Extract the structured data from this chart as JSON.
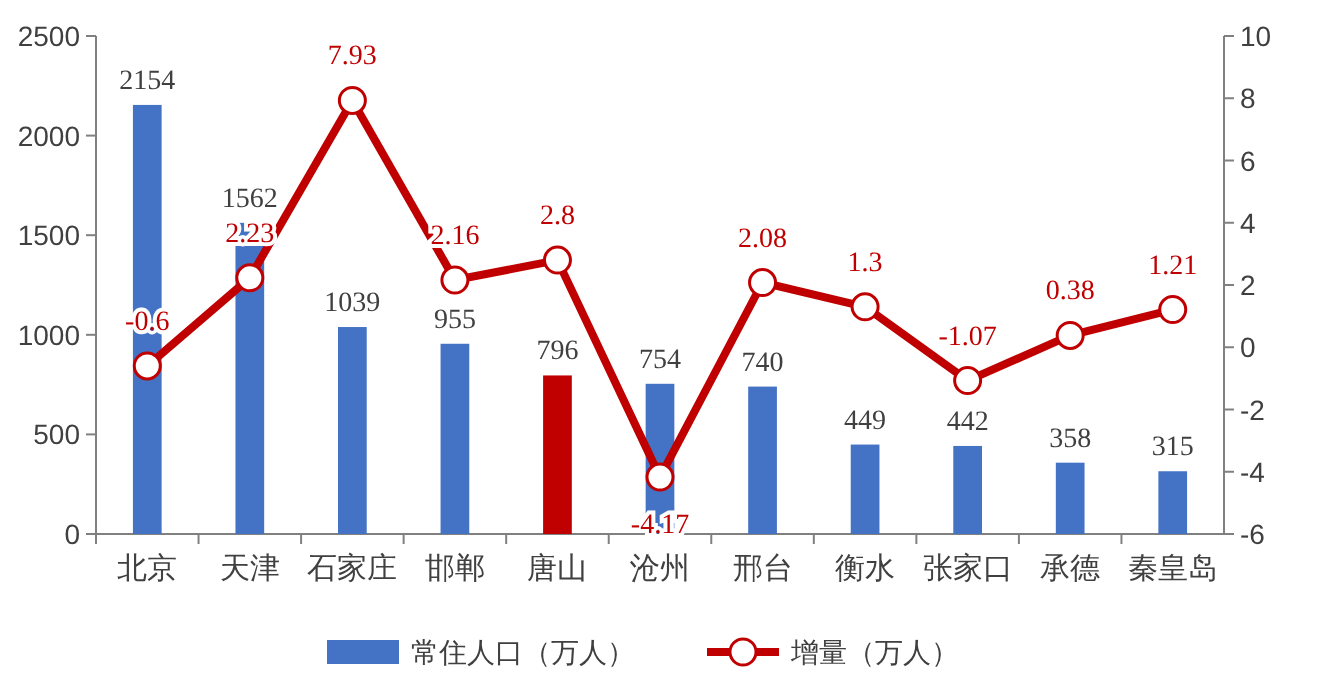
{
  "chart_data": {
    "type": "bar",
    "categories": [
      "北京",
      "天津",
      "石家庄",
      "邯郸",
      "唐山",
      "沧州",
      "邢台",
      "衡水",
      "张家口",
      "承德",
      "秦皇岛"
    ],
    "series": [
      {
        "name": "常住人口（万人）",
        "color": "#4472c4",
        "colors": [
          "#4472c4",
          "#4472c4",
          "#4472c4",
          "#4472c4",
          "#c00000",
          "#4472c4",
          "#4472c4",
          "#4472c4",
          "#4472c4",
          "#4472c4",
          "#4472c4"
        ],
        "values": [
          2154,
          1562,
          1039,
          955,
          796,
          754,
          740,
          449,
          442,
          358,
          315
        ]
      },
      {
        "name": "增量（万人）",
        "type": "line",
        "axis": "y2",
        "color": "#c00000",
        "marker": "circle",
        "values": [
          -0.6,
          2.23,
          7.93,
          2.16,
          2.8,
          -4.17,
          2.08,
          1.3,
          -1.07,
          0.38,
          1.21
        ]
      }
    ],
    "ylim": [
      0,
      2500
    ],
    "yticks": [
      0,
      500,
      1000,
      1500,
      2000,
      2500
    ],
    "y2lim": [
      -6,
      10
    ],
    "y2ticks": [
      -6,
      -4,
      -2,
      0,
      2,
      4,
      6,
      8,
      10
    ],
    "data_labels": true,
    "grid": false,
    "legend": "bottom"
  }
}
